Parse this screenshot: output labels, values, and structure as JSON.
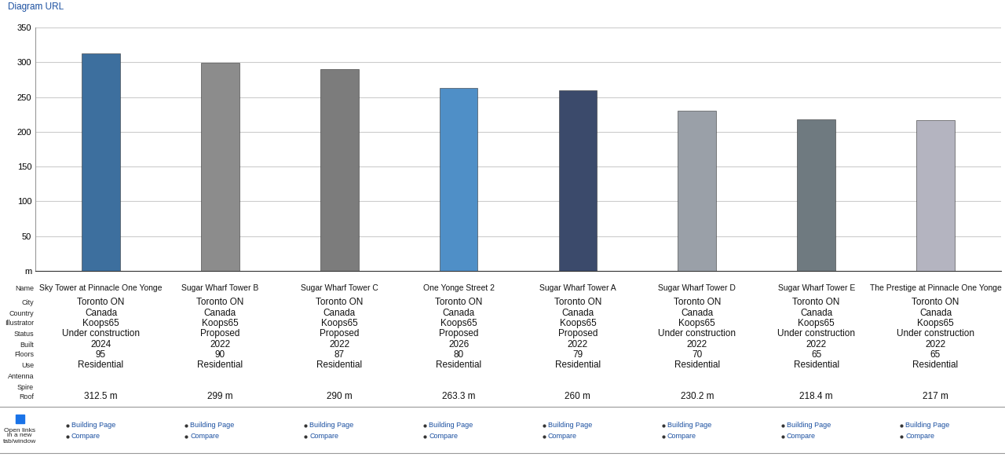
{
  "header": {
    "link": "Diagram URL"
  },
  "chart_data": {
    "type": "bar",
    "categories": [
      "Sky Tower at Pinnacle One Yonge",
      "Sugar Wharf Tower B",
      "Sugar Wharf Tower C",
      "One Yonge Street 2",
      "Sugar Wharf Tower A",
      "Sugar Wharf Tower D",
      "Sugar Wharf Tower E",
      "The Prestige at Pinnacle One Yonge"
    ],
    "values": [
      312.5,
      299,
      290,
      263.3,
      260,
      230.2,
      218.4,
      217
    ],
    "value_labels": [
      "312.5 m",
      "299 m",
      "290 m",
      "263.3 m",
      "260 m",
      "230.2 m",
      "218.4 m",
      "217 m"
    ],
    "colors": [
      "#3d6f9e",
      "#8c8c8c",
      "#7c7c7c",
      "#4f8fc7",
      "#3b4a6b",
      "#9aa0a8",
      "#6f7a80",
      "#b4b4c0"
    ],
    "ylim": [
      0,
      350
    ],
    "yticks": [
      {
        "value": 0,
        "label": "m"
      },
      50,
      100,
      150,
      200,
      250,
      300,
      350
    ],
    "grid": true,
    "tick_labels": "y"
  },
  "table": {
    "row_labels": [
      "Name",
      "City",
      "Country",
      "Illustrator",
      "Status",
      "Built",
      "Floors",
      "Use",
      "Antenna",
      "Spire",
      "Roof"
    ],
    "City": [
      "Toronto ON",
      "Toronto ON",
      "Toronto ON",
      "Toronto ON",
      "Toronto ON",
      "Toronto ON",
      "Toronto ON",
      "Toronto ON"
    ],
    "Country": [
      "Canada",
      "Canada",
      "Canada",
      "Canada",
      "Canada",
      "Canada",
      "Canada",
      "Canada"
    ],
    "Illustrator": [
      "Koops65",
      "Koops65",
      "Koops65",
      "Koops65",
      "Koops65",
      "Koops65",
      "Koops65",
      "Koops65"
    ],
    "Status": [
      "Under construction",
      "Proposed",
      "Proposed",
      "Proposed",
      "Proposed",
      "Under construction",
      "Under construction",
      "Under construction"
    ],
    "Built": [
      2024,
      2022,
      2022,
      2026,
      2022,
      2022,
      2022,
      2022
    ],
    "Floors": [
      95,
      90,
      87,
      80,
      79,
      70,
      65,
      65
    ],
    "Use": [
      "Residential",
      "Residential",
      "Residential",
      "Residential",
      "Residential",
      "Residential",
      "Residential",
      "Residential"
    ]
  },
  "links": {
    "checkbox_label": "Open links\nin a new\ntab/window",
    "items": [
      "Building Page",
      "Compare"
    ]
  }
}
